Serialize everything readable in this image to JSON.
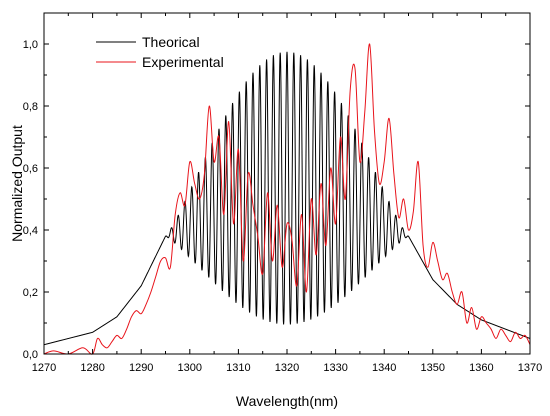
{
  "chart_data": {
    "type": "line",
    "title": "",
    "xlabel": "Wavelength(nm)",
    "ylabel": "Normalized Output",
    "xlim": [
      1270,
      1370
    ],
    "ylim": [
      0,
      1.1
    ],
    "x_ticks": [
      "1270",
      "1280",
      "1290",
      "1300",
      "1310",
      "1320",
      "1330",
      "1340",
      "1350",
      "1360",
      "1370"
    ],
    "y_ticks": [
      "0,0",
      "0,2",
      "0,4",
      "0,6",
      "0,8",
      "1,0"
    ],
    "grid": false,
    "legend_position": "top-left",
    "series": [
      {
        "name": "Theorical",
        "color": "#000000",
        "model": {
          "envelope_center": 1320,
          "fringe_period_nm": 1.4,
          "fringe_center_mean": 0.535,
          "fringe_center_amplitude": 0.44,
          "tails": [
            [
              1270,
              0.03
            ],
            [
              1280,
              0.07
            ],
            [
              1285,
              0.12
            ],
            [
              1290,
              0.22
            ],
            [
              1295,
              0.38
            ],
            [
              1345,
              0.38
            ],
            [
              1350,
              0.24
            ],
            [
              1355,
              0.16
            ],
            [
              1360,
              0.11
            ],
            [
              1365,
              0.08
            ],
            [
              1370,
              0.05
            ]
          ]
        }
      },
      {
        "name": "Experimental",
        "color": "#e8141b",
        "x": [
          1270,
          1272,
          1275,
          1278,
          1280,
          1281,
          1282,
          1283,
          1284,
          1285,
          1286,
          1287,
          1288,
          1289,
          1290,
          1291,
          1292,
          1293,
          1294,
          1295,
          1296,
          1297,
          1298,
          1299,
          1300,
          1301,
          1302,
          1303,
          1304,
          1305,
          1306,
          1307,
          1308,
          1309,
          1310,
          1311,
          1312,
          1313,
          1314,
          1315,
          1316,
          1317,
          1318,
          1319,
          1320,
          1321,
          1322,
          1323,
          1324,
          1325,
          1326,
          1327,
          1328,
          1329,
          1330,
          1331,
          1332,
          1333,
          1334,
          1335,
          1336,
          1337,
          1338,
          1339,
          1340,
          1341,
          1342,
          1343,
          1344,
          1345,
          1346,
          1347,
          1348,
          1349,
          1350,
          1351,
          1352,
          1353,
          1354,
          1355,
          1356,
          1357,
          1358,
          1359,
          1360,
          1361,
          1362,
          1363,
          1364,
          1365,
          1366,
          1367,
          1368,
          1369,
          1370
        ],
        "values": [
          0.0,
          0.01,
          0.0,
          0.02,
          0.0,
          0.05,
          0.03,
          0.02,
          0.04,
          0.06,
          0.05,
          0.08,
          0.12,
          0.14,
          0.13,
          0.16,
          0.2,
          0.25,
          0.3,
          0.31,
          0.28,
          0.45,
          0.52,
          0.48,
          0.62,
          0.55,
          0.5,
          0.58,
          0.8,
          0.62,
          0.7,
          0.45,
          0.75,
          0.42,
          0.66,
          0.3,
          0.58,
          0.48,
          0.38,
          0.26,
          0.52,
          0.3,
          0.48,
          0.28,
          0.42,
          0.37,
          0.22,
          0.45,
          0.2,
          0.5,
          0.32,
          0.55,
          0.35,
          0.6,
          0.42,
          0.7,
          0.5,
          0.85,
          0.92,
          0.62,
          0.78,
          1.0,
          0.72,
          0.55,
          0.62,
          0.76,
          0.58,
          0.44,
          0.5,
          0.4,
          0.46,
          0.62,
          0.35,
          0.28,
          0.36,
          0.3,
          0.24,
          0.26,
          0.2,
          0.16,
          0.2,
          0.1,
          0.15,
          0.08,
          0.12,
          0.1,
          0.08,
          0.05,
          0.08,
          0.06,
          0.04,
          0.07,
          0.05,
          0.06,
          0.03
        ]
      }
    ]
  }
}
